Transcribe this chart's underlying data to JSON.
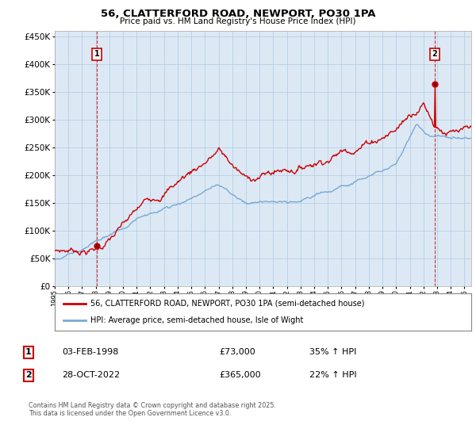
{
  "title": "56, CLATTERFORD ROAD, NEWPORT, PO30 1PA",
  "subtitle": "Price paid vs. HM Land Registry's House Price Index (HPI)",
  "ytick_values": [
    0,
    50000,
    100000,
    150000,
    200000,
    250000,
    300000,
    350000,
    400000,
    450000
  ],
  "ylim": [
    0,
    460000
  ],
  "xlim_start": 1995.0,
  "xlim_end": 2025.5,
  "red_color": "#cc0000",
  "blue_color": "#7aa8d2",
  "bg_fill": "#dce9f5",
  "marker1_x": 1998.09,
  "marker1_y": 73000,
  "marker2_x": 2022.83,
  "marker2_y": 365000,
  "legend_red": "56, CLATTERFORD ROAD, NEWPORT, PO30 1PA (semi-detached house)",
  "legend_blue": "HPI: Average price, semi-detached house, Isle of Wight",
  "ann1_date": "03-FEB-1998",
  "ann1_price": "£73,000",
  "ann1_hpi": "35% ↑ HPI",
  "ann2_date": "28-OCT-2022",
  "ann2_price": "£365,000",
  "ann2_hpi": "22% ↑ HPI",
  "footer": "Contains HM Land Registry data © Crown copyright and database right 2025.\nThis data is licensed under the Open Government Licence v3.0.",
  "background_color": "#ffffff",
  "grid_color": "#b0c8e0"
}
